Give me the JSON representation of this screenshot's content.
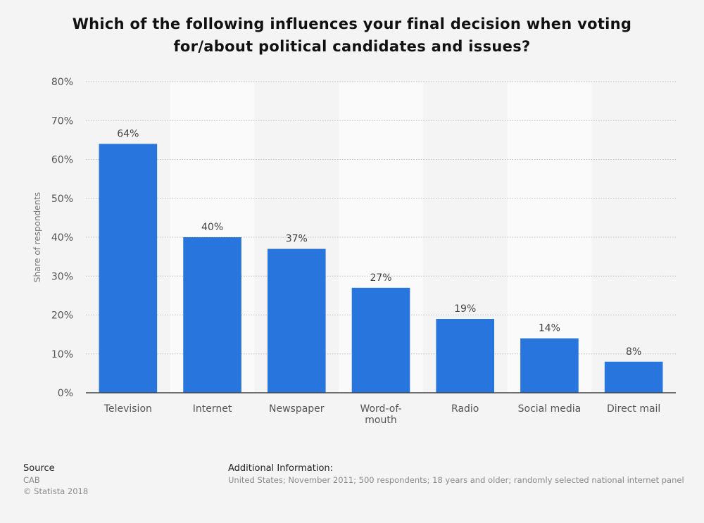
{
  "title_lines": [
    "Which of the following influences your final decision when voting",
    "for/about political candidates and issues?"
  ],
  "chart_data": {
    "type": "bar",
    "categories": [
      "Television",
      "Internet",
      "Newspaper",
      "Word-of-mouth",
      "Radio",
      "Social media",
      "Direct mail"
    ],
    "category_tick_lines": [
      [
        "Television"
      ],
      [
        "Internet"
      ],
      [
        "Newspaper"
      ],
      [
        "Word-of-",
        "mouth"
      ],
      [
        "Radio"
      ],
      [
        "Social media"
      ],
      [
        "Direct mail"
      ]
    ],
    "values": [
      64,
      40,
      37,
      27,
      19,
      14,
      8
    ],
    "data_labels": [
      "64%",
      "40%",
      "37%",
      "27%",
      "19%",
      "14%",
      "8%"
    ],
    "ylabel": "Share of respondents",
    "ylim": [
      0,
      80
    ],
    "yticks": [
      0,
      10,
      20,
      30,
      40,
      50,
      60,
      70,
      80
    ],
    "ytick_labels": [
      "0%",
      "10%",
      "20%",
      "30%",
      "40%",
      "50%",
      "60%",
      "70%",
      "80%"
    ],
    "grid": true,
    "legend": "none",
    "bar_color": "#2876dd"
  },
  "source": {
    "heading": "Source",
    "lines": [
      "CAB",
      "© Statista 2018"
    ]
  },
  "additional_info": {
    "heading": "Additional Information:",
    "text": "United States; November 2011; 500 respondents; 18 years and older; randomly selected national internet panel"
  }
}
